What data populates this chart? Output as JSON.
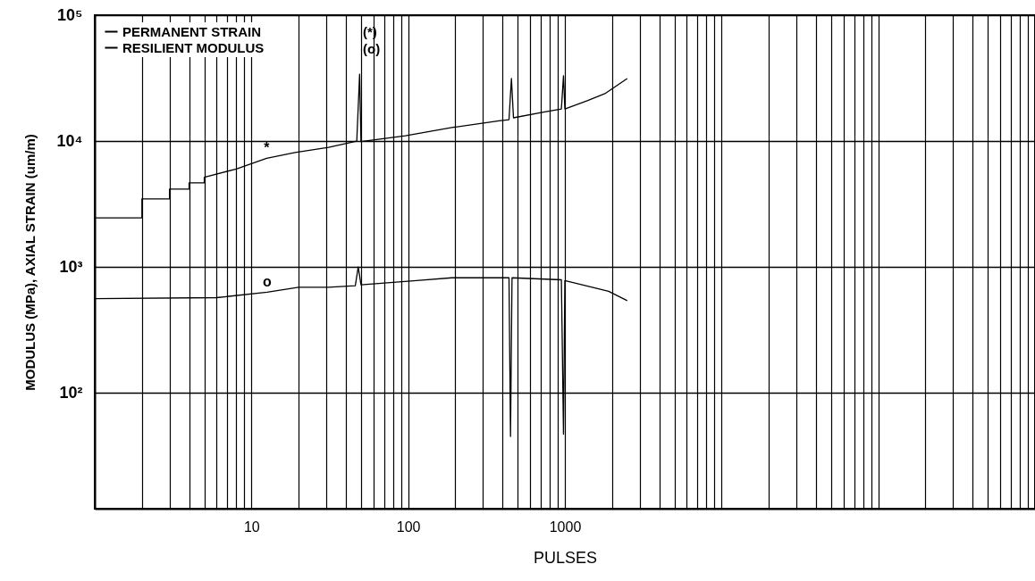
{
  "chart_data": {
    "type": "line",
    "xlabel": "PULSES",
    "ylabel": "MODULUS (MPa), AXIAL STRAIN (um/m)",
    "log": "xy",
    "grid": true,
    "legend": "top left",
    "line_style": "solid",
    "xlim": [
      1,
      1000000
    ],
    "ylim": [
      12,
      100000
    ],
    "xticks": [
      {
        "value": 1,
        "label": null
      },
      {
        "value": 2,
        "label": null
      },
      {
        "value": 3,
        "label": null
      },
      {
        "value": 4,
        "label": null
      },
      {
        "value": 5,
        "label": null
      },
      {
        "value": 6,
        "label": null
      },
      {
        "value": 7,
        "label": null
      },
      {
        "value": 8,
        "label": null
      },
      {
        "value": 9,
        "label": null
      },
      10,
      {
        "value": 20,
        "label": null
      },
      {
        "value": 30,
        "label": null
      },
      {
        "value": 40,
        "label": null
      },
      {
        "value": 50,
        "label": null
      },
      {
        "value": 60,
        "label": null
      },
      {
        "value": 70,
        "label": null
      },
      {
        "value": 80,
        "label": null
      },
      {
        "value": 90,
        "label": null
      },
      100,
      {
        "value": 200,
        "label": null
      },
      {
        "value": 300,
        "label": null
      },
      {
        "value": 400,
        "label": null
      },
      {
        "value": 500,
        "label": null
      },
      {
        "value": 600,
        "label": null
      },
      {
        "value": 700,
        "label": null
      },
      {
        "value": 800,
        "label": null
      },
      {
        "value": 900,
        "label": null
      },
      1000,
      {
        "value": 2000,
        "label": null
      },
      {
        "value": 3000,
        "label": null
      },
      {
        "value": 4000,
        "label": null
      },
      {
        "value": 5000,
        "label": null
      },
      {
        "value": 6000,
        "label": null
      },
      {
        "value": 7000,
        "label": null
      },
      {
        "value": 8000,
        "label": null
      },
      {
        "value": 9000,
        "label": null
      },
      {
        "value": 10000,
        "label": null
      },
      {
        "value": 20000,
        "label": null
      },
      {
        "value": 30000,
        "label": null
      },
      {
        "value": 40000,
        "label": null
      },
      {
        "value": 50000,
        "label": null
      },
      {
        "value": 60000,
        "label": null
      },
      {
        "value": 70000,
        "label": null
      },
      {
        "value": 80000,
        "label": null
      },
      {
        "value": 90000,
        "label": null
      },
      {
        "value": 100000,
        "label": null
      },
      {
        "value": 200000,
        "label": null
      },
      {
        "value": 300000,
        "label": null
      },
      {
        "value": 400000,
        "label": null
      },
      {
        "value": 500000,
        "label": null
      },
      {
        "value": 600000,
        "label": null
      },
      {
        "value": 700000,
        "label": null
      },
      {
        "value": 800000,
        "label": null
      },
      {
        "value": 900000,
        "label": null
      }
    ],
    "yticks": [
      {
        "value": 100,
        "label": "10²"
      },
      {
        "value": 1000,
        "label": "10³"
      },
      {
        "value": 10000,
        "label": "10⁴"
      },
      {
        "value": 100000,
        "label": "10⁵"
      }
    ],
    "series": [
      {
        "name": "PERMANENT STRAIN",
        "color": "#000000",
        "x": [
          1,
          2,
          2,
          3,
          3,
          4,
          4,
          5,
          5,
          8,
          12.5,
          19,
          31,
          47,
          49,
          50,
          96,
          190,
          380,
          440,
          456,
          470,
          730,
          950,
          980,
          1000,
          1400,
          1800,
          2500
        ],
        "values": [
          2450,
          2450,
          3470,
          3470,
          4150,
          4150,
          4650,
          4650,
          5150,
          6000,
          7300,
          8100,
          8900,
          10000,
          34000,
          9900,
          11000,
          12800,
          14500,
          14800,
          31400,
          15300,
          17000,
          18000,
          33000,
          18000,
          21000,
          23800,
          31400
        ]
      },
      {
        "name": "RESILIENT MODULUS",
        "color": "#000000",
        "x": [
          1,
          6,
          12.6,
          20,
          31,
          46,
          48,
          50,
          113,
          190,
          440,
          450,
          460,
          950,
          980,
          1000,
          1900,
          2500
        ],
        "values": [
          560,
          570,
          630,
          690,
          690,
          710,
          1000,
          720,
          780,
          820,
          820,
          45,
          820,
          790,
          47,
          780,
          640,
          540
        ]
      }
    ],
    "annotations": [
      "(*)",
      "(o)",
      {
        "text": "*",
        "x": 12.5,
        "y": 7300
      },
      {
        "text": "o",
        "x": 12.6,
        "y": 630
      }
    ]
  }
}
